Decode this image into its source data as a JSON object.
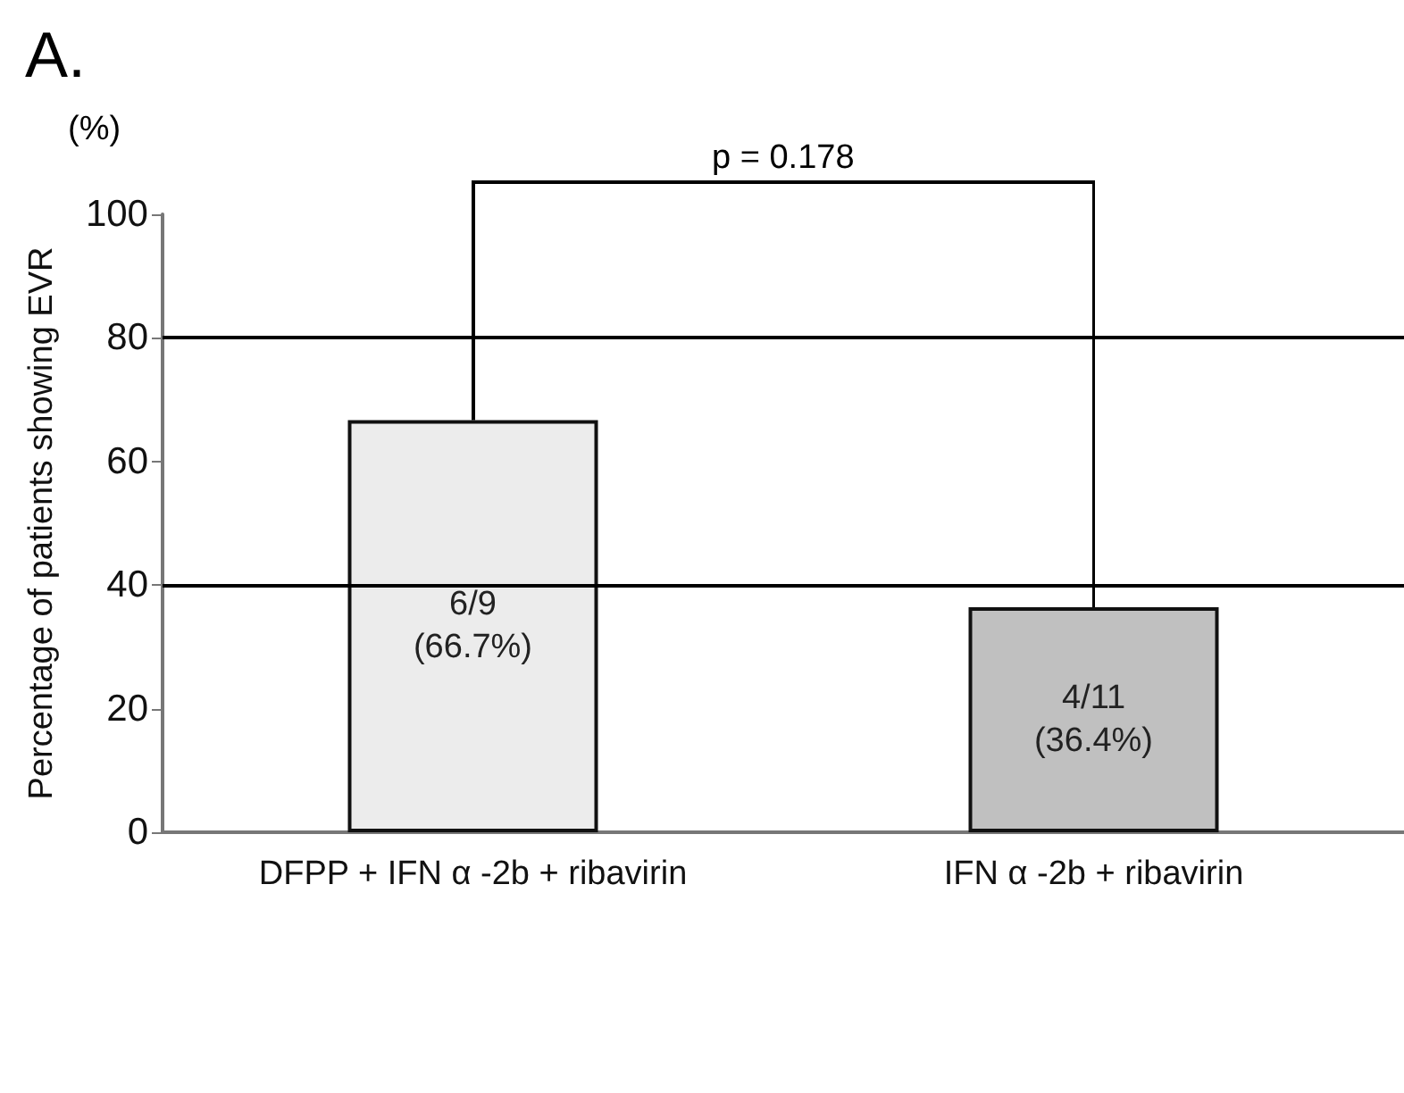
{
  "chart_data": {
    "type": "bar",
    "title": "A.",
    "ylabel": "Percentage of patients showing EVR",
    "categories": [
      "DFPP + IFN α -2b + ribavirin",
      "IFN α -2b + ribavirin"
    ],
    "values": [
      66.7,
      36.4
    ],
    "colors": [
      "#ececec",
      "#c0c0c0"
    ],
    "value_labels": [
      "6/9\n(66.7%)",
      "4/11\n(36.4%)"
    ],
    "ylim": [
      0,
      100
    ],
    "yticks": [
      0,
      20,
      40,
      60,
      80,
      100
    ],
    "ref_lines": [
      {
        "axis": "y",
        "value": 40
      },
      {
        "axis": "y",
        "value": 80
      }
    ],
    "annotations": [
      "(%)",
      "p = 0.178"
    ],
    "grid": false
  }
}
